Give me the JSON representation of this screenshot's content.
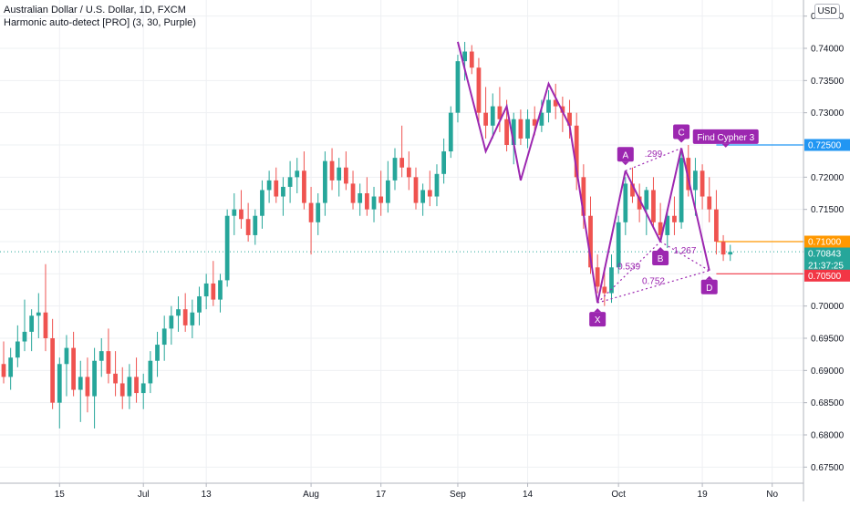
{
  "header": {
    "title": "Australian Dollar / U.S. Dollar, 1D, FXCM",
    "indicator": "Harmonic auto-detect [PRO] (3, 30, Purple)"
  },
  "currency_button": "USD",
  "colors": {
    "up": "#26a69a",
    "down": "#ef5350",
    "pattern": "#9c27b0",
    "grid": "#eef0f3",
    "axis_text": "#131722",
    "level_blue": "#2196f3",
    "level_orange": "#ff9800",
    "level_red": "#f23645",
    "last_price": "#26a69a"
  },
  "price_labels": [
    {
      "value": "0.72500",
      "kind": "level_blue"
    },
    {
      "value": "0.71000",
      "kind": "level_orange"
    },
    {
      "value": "0.70843",
      "kind": "last_price"
    },
    {
      "value": "21:37:25",
      "kind": "last_price"
    },
    {
      "value": "0.70500",
      "kind": "level_red"
    }
  ],
  "chart_data": {
    "type": "candlestick",
    "title": "Australian Dollar / U.S. Dollar, 1D, FXCM",
    "y_ticks": [
      "0.74500",
      "0.74000",
      "0.73500",
      "0.73000",
      "0.72500",
      "0.72000",
      "0.71500",
      "0.71000",
      "0.70500",
      "0.70000",
      "0.69500",
      "0.69000",
      "0.68500",
      "0.68000",
      "0.67500"
    ],
    "y_tick_values": [
      0.745,
      0.74,
      0.735,
      0.73,
      0.725,
      0.72,
      0.715,
      0.71,
      0.705,
      0.7,
      0.695,
      0.69,
      0.685,
      0.68,
      0.675
    ],
    "ylim": [
      0.6725,
      0.7475
    ],
    "x_ticks": [
      {
        "label": "15",
        "index": 8
      },
      {
        "label": "Jul",
        "index": 20
      },
      {
        "label": "13",
        "index": 29
      },
      {
        "label": "Aug",
        "index": 44
      },
      {
        "label": "17",
        "index": 54
      },
      {
        "label": "Sep",
        "index": 65
      },
      {
        "label": "14",
        "index": 75
      },
      {
        "label": "Oct",
        "index": 88
      },
      {
        "label": "19",
        "index": 100
      },
      {
        "label": "No",
        "index": 110
      }
    ],
    "x_index_range": [
      0,
      115
    ],
    "candles": [
      [
        0.691,
        0.6945,
        0.688,
        0.689
      ],
      [
        0.689,
        0.6935,
        0.687,
        0.692
      ],
      [
        0.692,
        0.697,
        0.6905,
        0.6945
      ],
      [
        0.6945,
        0.701,
        0.693,
        0.696
      ],
      [
        0.696,
        0.6995,
        0.693,
        0.6985
      ],
      [
        0.6985,
        0.702,
        0.695,
        0.699
      ],
      [
        0.699,
        0.7065,
        0.693,
        0.695
      ],
      [
        0.695,
        0.698,
        0.684,
        0.685
      ],
      [
        0.685,
        0.692,
        0.681,
        0.691
      ],
      [
        0.691,
        0.6955,
        0.686,
        0.6935
      ],
      [
        0.6935,
        0.696,
        0.686,
        0.687
      ],
      [
        0.687,
        0.6915,
        0.682,
        0.689
      ],
      [
        0.689,
        0.692,
        0.6835,
        0.686
      ],
      [
        0.686,
        0.6935,
        0.681,
        0.6915
      ],
      [
        0.6915,
        0.695,
        0.689,
        0.693
      ],
      [
        0.693,
        0.6965,
        0.688,
        0.6895
      ],
      [
        0.6895,
        0.693,
        0.686,
        0.688
      ],
      [
        0.688,
        0.6905,
        0.684,
        0.686
      ],
      [
        0.686,
        0.691,
        0.684,
        0.689
      ],
      [
        0.689,
        0.692,
        0.685,
        0.6865
      ],
      [
        0.6865,
        0.6895,
        0.684,
        0.688
      ],
      [
        0.688,
        0.693,
        0.6865,
        0.6915
      ],
      [
        0.6915,
        0.696,
        0.689,
        0.694
      ],
      [
        0.694,
        0.6985,
        0.6915,
        0.6965
      ],
      [
        0.6965,
        0.7,
        0.694,
        0.6985
      ],
      [
        0.6985,
        0.7015,
        0.696,
        0.6995
      ],
      [
        0.6995,
        0.702,
        0.696,
        0.697
      ],
      [
        0.697,
        0.701,
        0.695,
        0.699
      ],
      [
        0.699,
        0.703,
        0.697,
        0.7015
      ],
      [
        0.7015,
        0.705,
        0.6995,
        0.7035
      ],
      [
        0.7035,
        0.707,
        0.7,
        0.701
      ],
      [
        0.701,
        0.705,
        0.699,
        0.704
      ],
      [
        0.704,
        0.715,
        0.703,
        0.714
      ],
      [
        0.714,
        0.7175,
        0.711,
        0.715
      ],
      [
        0.715,
        0.718,
        0.712,
        0.7135
      ],
      [
        0.7135,
        0.716,
        0.71,
        0.711
      ],
      [
        0.711,
        0.715,
        0.7095,
        0.714
      ],
      [
        0.714,
        0.7195,
        0.712,
        0.718
      ],
      [
        0.718,
        0.721,
        0.716,
        0.7195
      ],
      [
        0.7195,
        0.7215,
        0.716,
        0.717
      ],
      [
        0.717,
        0.72,
        0.714,
        0.7185
      ],
      [
        0.7185,
        0.7225,
        0.716,
        0.72
      ],
      [
        0.72,
        0.723,
        0.7175,
        0.721
      ],
      [
        0.721,
        0.724,
        0.715,
        0.716
      ],
      [
        0.716,
        0.7185,
        0.708,
        0.713
      ],
      [
        0.713,
        0.7175,
        0.711,
        0.716
      ],
      [
        0.716,
        0.724,
        0.714,
        0.7225
      ],
      [
        0.7225,
        0.7245,
        0.718,
        0.7195
      ],
      [
        0.7195,
        0.723,
        0.717,
        0.7215
      ],
      [
        0.7215,
        0.724,
        0.718,
        0.719
      ],
      [
        0.719,
        0.721,
        0.715,
        0.716
      ],
      [
        0.716,
        0.719,
        0.714,
        0.7175
      ],
      [
        0.7175,
        0.72,
        0.714,
        0.715
      ],
      [
        0.715,
        0.7185,
        0.713,
        0.717
      ],
      [
        0.717,
        0.721,
        0.714,
        0.716
      ],
      [
        0.716,
        0.7225,
        0.7145,
        0.7195
      ],
      [
        0.7195,
        0.7245,
        0.718,
        0.723
      ],
      [
        0.723,
        0.728,
        0.72,
        0.7215
      ],
      [
        0.7215,
        0.724,
        0.718,
        0.72
      ],
      [
        0.72,
        0.7215,
        0.715,
        0.716
      ],
      [
        0.716,
        0.719,
        0.714,
        0.718
      ],
      [
        0.718,
        0.721,
        0.7155,
        0.717
      ],
      [
        0.717,
        0.722,
        0.7155,
        0.7205
      ],
      [
        0.7205,
        0.726,
        0.719,
        0.724
      ],
      [
        0.724,
        0.731,
        0.723,
        0.73
      ],
      [
        0.73,
        0.739,
        0.7285,
        0.738
      ],
      [
        0.738,
        0.741,
        0.735,
        0.7395
      ],
      [
        0.7395,
        0.7405,
        0.736,
        0.737
      ],
      [
        0.737,
        0.7385,
        0.728,
        0.73
      ],
      [
        0.73,
        0.734,
        0.726,
        0.728
      ],
      [
        0.728,
        0.733,
        0.726,
        0.731
      ],
      [
        0.731,
        0.734,
        0.727,
        0.729
      ],
      [
        0.729,
        0.732,
        0.724,
        0.725
      ],
      [
        0.725,
        0.73,
        0.722,
        0.729
      ],
      [
        0.729,
        0.7305,
        0.725,
        0.726
      ],
      [
        0.726,
        0.7305,
        0.7245,
        0.729
      ],
      [
        0.729,
        0.731,
        0.7265,
        0.728
      ],
      [
        0.728,
        0.732,
        0.727,
        0.73
      ],
      [
        0.73,
        0.7335,
        0.7285,
        0.732
      ],
      [
        0.732,
        0.7345,
        0.729,
        0.731
      ],
      [
        0.731,
        0.7325,
        0.727,
        0.73
      ],
      [
        0.73,
        0.732,
        0.726,
        0.728
      ],
      [
        0.728,
        0.73,
        0.718,
        0.72
      ],
      [
        0.72,
        0.722,
        0.712,
        0.714
      ],
      [
        0.714,
        0.717,
        0.705,
        0.706
      ],
      [
        0.706,
        0.708,
        0.702,
        0.703
      ],
      [
        0.703,
        0.706,
        0.7,
        0.702
      ],
      [
        0.702,
        0.708,
        0.7005,
        0.706
      ],
      [
        0.706,
        0.714,
        0.705,
        0.713
      ],
      [
        0.713,
        0.72,
        0.711,
        0.719
      ],
      [
        0.719,
        0.7215,
        0.716,
        0.717
      ],
      [
        0.717,
        0.719,
        0.713,
        0.715
      ],
      [
        0.715,
        0.7185,
        0.711,
        0.718
      ],
      [
        0.718,
        0.72,
        0.712,
        0.713
      ],
      [
        0.713,
        0.716,
        0.71,
        0.711
      ],
      [
        0.711,
        0.715,
        0.709,
        0.714
      ],
      [
        0.714,
        0.717,
        0.711,
        0.713
      ],
      [
        0.713,
        0.724,
        0.712,
        0.723
      ],
      [
        0.723,
        0.725,
        0.717,
        0.718
      ],
      [
        0.718,
        0.723,
        0.714,
        0.721
      ],
      [
        0.721,
        0.722,
        0.715,
        0.717
      ],
      [
        0.717,
        0.72,
        0.713,
        0.715
      ],
      [
        0.715,
        0.718,
        0.708,
        0.71
      ],
      [
        0.71,
        0.711,
        0.707,
        0.708
      ],
      [
        0.708,
        0.7095,
        0.707,
        0.7084
      ]
    ],
    "pattern": {
      "name": "Find Cypher 3",
      "points": [
        {
          "label": "X",
          "index": 85,
          "price": 0.7005
        },
        {
          "label": "A",
          "index": 89,
          "price": 0.721
        },
        {
          "label": "B",
          "index": 94,
          "price": 0.71
        },
        {
          "label": "C",
          "index": 97,
          "price": 0.7245
        },
        {
          "label": "D",
          "index": 101,
          "price": 0.7055
        }
      ],
      "ratios": [
        {
          "text": ".299",
          "between": "A-C"
        },
        {
          "text": "0.539",
          "between": "X-B"
        },
        {
          "text": "1.267",
          "between": "B-D"
        },
        {
          "text": "0.752",
          "between": "X-D"
        }
      ]
    },
    "zigzag": [
      {
        "index": 65,
        "price": 0.741
      },
      {
        "index": 69,
        "price": 0.724
      },
      {
        "index": 72,
        "price": 0.731
      },
      {
        "index": 74,
        "price": 0.7195
      },
      {
        "index": 78,
        "price": 0.7345
      },
      {
        "index": 81,
        "price": 0.728
      }
    ],
    "levels": [
      {
        "price": 0.725,
        "color": "level_blue"
      },
      {
        "price": 0.71,
        "color": "level_orange"
      },
      {
        "price": 0.705,
        "color": "level_red"
      }
    ],
    "last_price": 0.70843
  }
}
